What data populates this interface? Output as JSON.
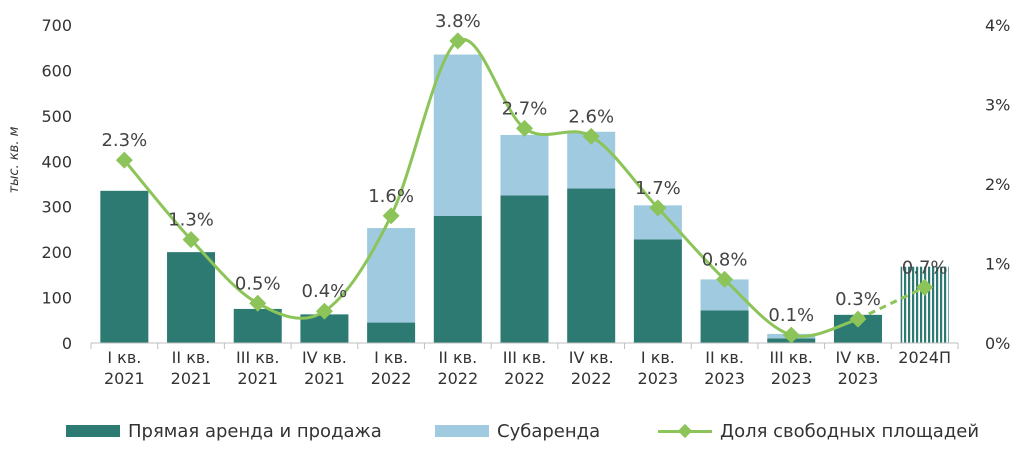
{
  "chart_data": {
    "type": "bar",
    "stacked": true,
    "categories": [
      [
        "I кв.",
        "2021"
      ],
      [
        "II кв.",
        "2021"
      ],
      [
        "III кв.",
        "2021"
      ],
      [
        "IV кв.",
        "2021"
      ],
      [
        "I кв.",
        "2022"
      ],
      [
        "II кв.",
        "2022"
      ],
      [
        "III кв.",
        "2022"
      ],
      [
        "IV кв.",
        "2022"
      ],
      [
        "I кв.",
        "2023"
      ],
      [
        "II кв.",
        "2023"
      ],
      [
        "III кв.",
        "2023"
      ],
      [
        "IV кв.",
        "2023"
      ],
      [
        "2024П"
      ]
    ],
    "series": [
      {
        "name": "Прямая аренда и продажа",
        "color": "#2d7a72",
        "axis": "left",
        "values": [
          335,
          200,
          75,
          63,
          45,
          280,
          325,
          340,
          228,
          72,
          10,
          62,
          null
        ]
      },
      {
        "name": "Субаренда",
        "color": "#9fcae0",
        "axis": "left",
        "values": [
          0,
          0,
          0,
          0,
          208,
          355,
          133,
          125,
          75,
          68,
          10,
          0,
          null
        ]
      },
      {
        "name": "Доля свободных площадей",
        "type": "line",
        "color": "#8cc459",
        "axis": "right",
        "values": [
          2.3,
          1.3,
          0.5,
          0.4,
          1.6,
          3.8,
          2.7,
          2.6,
          1.7,
          0.8,
          0.1,
          0.3,
          0.7
        ],
        "labels": [
          "2.3%",
          "1.3%",
          "0.5%",
          "0.4%",
          "1.6%",
          "3.8%",
          "2.7%",
          "2.6%",
          "1.7%",
          "0.8%",
          "0.1%",
          "0.3%",
          "0.7%"
        ],
        "forecast_from_index": 11
      }
    ],
    "forecast_bar": {
      "category_index": 12,
      "value": 168,
      "color": "#2d7a72"
    },
    "ylabel": "тыс. кв. м",
    "ylim": [
      0,
      700
    ],
    "yticks": [
      "0",
      "100",
      "200",
      "300",
      "400",
      "500",
      "600",
      "700"
    ],
    "y2lim": [
      0,
      4
    ],
    "y2ticks": [
      "0%",
      "1%",
      "2%",
      "3%",
      "4%"
    ],
    "grid": false,
    "legend_position": "bottom"
  },
  "legend": {
    "direct": "Прямая аренда и продажа",
    "sublease": "Субаренда",
    "vacancy": "Доля свободных площадей"
  },
  "colors": {
    "direct": "#2d7a72",
    "sublease": "#9fcae0",
    "line": "#8cc459"
  }
}
